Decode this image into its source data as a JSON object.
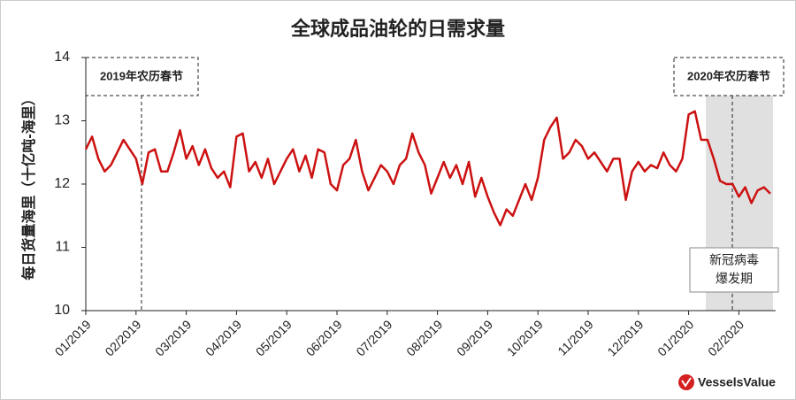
{
  "chart_data": {
    "type": "line",
    "title": "全球成品油轮的日需求量",
    "y_label": "每日货量海里（十亿吨-海里）",
    "color": "#cc1111",
    "categories": [
      "01/2019",
      null,
      null,
      null,
      null,
      null,
      null,
      null,
      "02/2019",
      null,
      null,
      null,
      null,
      null,
      null,
      null,
      "03/2019",
      null,
      null,
      null,
      null,
      null,
      null,
      null,
      "04/2019",
      null,
      null,
      null,
      null,
      null,
      null,
      null,
      "05/2019",
      null,
      null,
      null,
      null,
      null,
      null,
      null,
      "06/2019",
      null,
      null,
      null,
      null,
      null,
      null,
      null,
      "07/2019",
      null,
      null,
      null,
      null,
      null,
      null,
      null,
      "08/2019",
      null,
      null,
      null,
      null,
      null,
      null,
      null,
      "09/2019",
      null,
      null,
      null,
      null,
      null,
      null,
      null,
      "10/2019",
      null,
      null,
      null,
      null,
      null,
      null,
      null,
      "11/2019",
      null,
      null,
      null,
      null,
      null,
      null,
      null,
      "12/2019",
      null,
      null,
      null,
      null,
      null,
      null,
      null,
      "01/2020",
      null,
      null,
      null,
      null,
      null,
      null,
      null,
      "02/2020",
      null,
      null,
      null,
      null,
      null
    ],
    "values": [
      12.55,
      12.75,
      12.4,
      12.2,
      12.3,
      12.5,
      12.7,
      12.55,
      12.4,
      12.0,
      12.5,
      12.55,
      12.2,
      12.2,
      12.5,
      12.85,
      12.4,
      12.6,
      12.3,
      12.55,
      12.25,
      12.1,
      12.2,
      11.95,
      12.75,
      12.8,
      12.2,
      12.35,
      12.1,
      12.4,
      12.0,
      12.2,
      12.4,
      12.55,
      12.2,
      12.45,
      12.1,
      12.55,
      12.5,
      12.0,
      11.9,
      12.3,
      12.4,
      12.7,
      12.2,
      11.9,
      12.1,
      12.3,
      12.2,
      12.0,
      12.3,
      12.4,
      12.8,
      12.5,
      12.3,
      11.85,
      12.1,
      12.35,
      12.1,
      12.3,
      12.0,
      12.35,
      11.8,
      12.1,
      11.8,
      11.55,
      11.35,
      11.6,
      11.5,
      11.75,
      12.0,
      11.75,
      12.1,
      12.7,
      12.9,
      13.05,
      12.4,
      12.5,
      12.7,
      12.6,
      12.4,
      12.5,
      12.35,
      12.2,
      12.4,
      12.4,
      11.75,
      12.2,
      12.35,
      12.2,
      12.3,
      12.25,
      12.5,
      12.3,
      12.2,
      12.4,
      13.1,
      13.15,
      12.7,
      12.7,
      12.4,
      12.05,
      12.0,
      12.0,
      11.8,
      11.95,
      11.7,
      11.9,
      11.95,
      11.85
    ],
    "ylim": [
      10,
      14
    ],
    "yticks": [
      10,
      11,
      12,
      13,
      14
    ],
    "annotations": [
      "2019年农历春节",
      "2020年农历春节"
    ],
    "outbreak_label": [
      "新冠病毒",
      "爆发期"
    ],
    "logo": "VesselsValue"
  }
}
